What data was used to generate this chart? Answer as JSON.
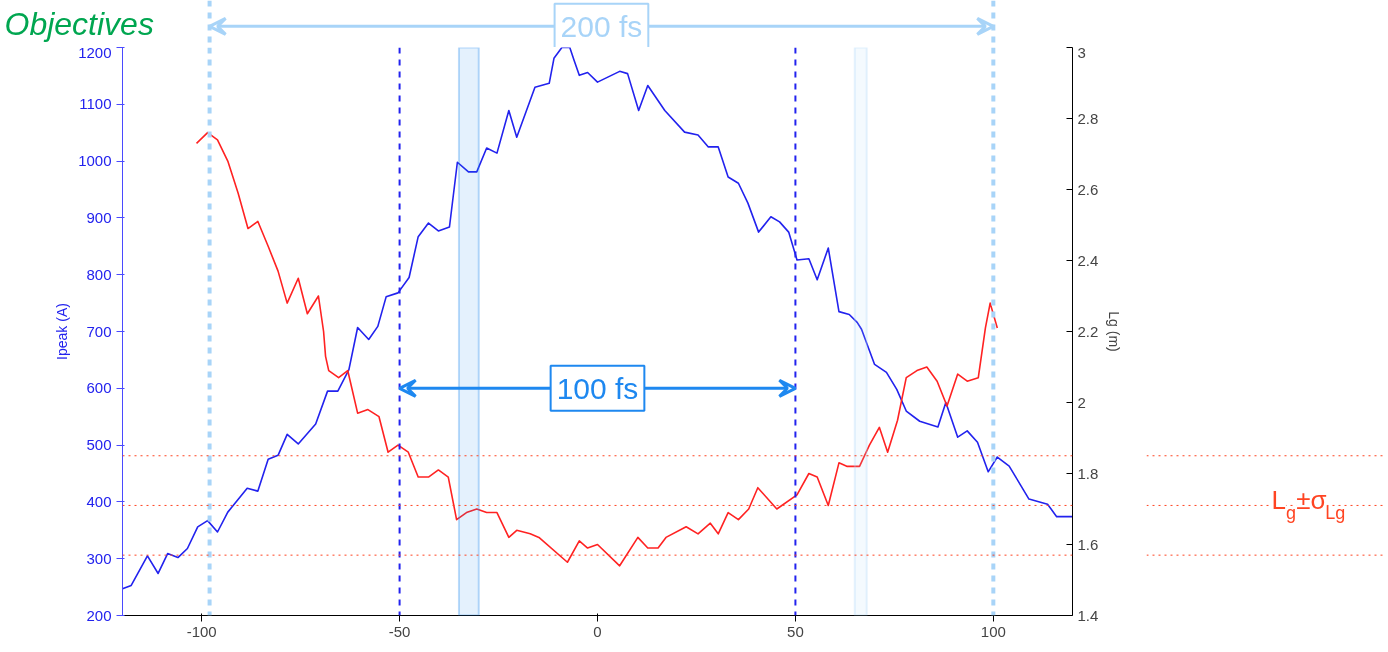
{
  "chart_data": {
    "type": "line",
    "title": "Objectives",
    "xlabel": null,
    "ylabel": "Ipeak (A)",
    "y2label": "Lg (m)",
    "xlim": [
      -120,
      120
    ],
    "xticks": [
      -100,
      -50,
      0,
      50,
      100
    ],
    "ylim": [
      200,
      1200
    ],
    "yticks": [
      200,
      300,
      400,
      500,
      600,
      700,
      800,
      900,
      1000,
      1100,
      1200
    ],
    "y2lim": [
      1.4,
      3
    ],
    "y2ticks": [
      1.4,
      1.6,
      1.8,
      2,
      2.2,
      2.4,
      2.6,
      2.8,
      3
    ],
    "grid": false,
    "marker": "none",
    "line_style": "solid",
    "series": [
      {
        "color": "#2222ee",
        "x": [
          -120,
          -117.8,
          -113.7,
          -111,
          -108.6,
          -106,
          -103.6,
          -101,
          -98.5,
          -96,
          -93.4,
          -88.5,
          -85.8,
          -83.2,
          -80.7,
          -78.4,
          -75.6,
          -71.2,
          -68.2,
          -65.6,
          -62.8,
          -60.6,
          -57.8,
          -55.5,
          -53.4,
          -50.4,
          -47.6,
          -45.3,
          -42.7,
          -40.2,
          -37.4,
          -35.4,
          -32.6,
          -30.5,
          -28,
          -25.4,
          -22.4,
          -20.4,
          -15.8,
          -12.2,
          -11,
          -9,
          -7,
          -5.9,
          -4.6,
          -2.5,
          0,
          5.6,
          7.6,
          10.4,
          12.7,
          17,
          22,
          25.4,
          28,
          30.5,
          33,
          35.6,
          38,
          40.7,
          43.8,
          46,
          48.3,
          50.4,
          53.4,
          55.5,
          58.3,
          61,
          63.6,
          65.6,
          66.7,
          70,
          73,
          75.6,
          78,
          81.4,
          86,
          88,
          91,
          93.4,
          96,
          98.7,
          101,
          104,
          109,
          113.7,
          116,
          120
        ],
        "values": [
          247,
          253,
          305,
          274,
          309,
          302,
          318,
          356,
          367,
          347,
          382,
          424,
          419,
          475,
          482,
          519,
          502,
          537,
          595,
          595,
          633,
          707,
          686,
          709,
          761,
          768,
          795,
          867,
          891,
          877,
          884,
          998,
          981,
          981,
          1023,
          1014,
          1089,
          1042,
          1130,
          1137,
          1181,
          1200,
          1200,
          1177,
          1151,
          1156,
          1139,
          1158,
          1154,
          1089,
          1133,
          1089,
          1051,
          1046,
          1025,
          1025,
          972,
          961,
          926,
          875,
          902,
          893,
          875,
          826,
          828,
          791,
          847,
          735,
          730,
          716,
          704,
          642,
          628,
          598,
          560,
          542,
          532,
          575,
          514,
          525,
          505,
          453,
          479,
          463,
          405,
          396,
          374,
          374
        ]
      },
      {
        "color": "#ff2222",
        "axis": "y2",
        "x": [
          -101.3,
          -98.5,
          -96,
          -93.4,
          -90.8,
          -88.3,
          -85.8,
          -83.2,
          -80.7,
          -78.4,
          -75.6,
          -73.3,
          -70.5,
          -69.2,
          -68.7,
          -67.9,
          -65.4,
          -63.1,
          -60.6,
          -58,
          -55.2,
          -52.9,
          -50.4,
          -47.8,
          -45.3,
          -42.7,
          -40.2,
          -37.7,
          -35.6,
          -33.1,
          -30.5,
          -28,
          -25.4,
          -22.4,
          -20.4,
          -17,
          -14.8,
          -7.6,
          -4.6,
          -2.5,
          0,
          5.6,
          10.2,
          12.7,
          15.3,
          17.3,
          22.4,
          25.4,
          28.5,
          30.5,
          33,
          35.6,
          38.2,
          40.5,
          45.3,
          50.4,
          53.4,
          55.5,
          58.3,
          61,
          63.1,
          66.2,
          68.7,
          71.2,
          73.3,
          75.8,
          78,
          80.7,
          83.2,
          85.8,
          88.3,
          91,
          93.4,
          96.2,
          98,
          99.2,
          101
        ],
        "values": [
          2.73,
          2.76,
          2.74,
          2.68,
          2.59,
          2.49,
          2.51,
          2.44,
          2.37,
          2.28,
          2.35,
          2.25,
          2.3,
          2.2,
          2.13,
          2.09,
          2.07,
          2.09,
          1.97,
          1.98,
          1.96,
          1.86,
          1.88,
          1.86,
          1.79,
          1.79,
          1.81,
          1.79,
          1.67,
          1.69,
          1.7,
          1.69,
          1.69,
          1.62,
          1.64,
          1.63,
          1.62,
          1.55,
          1.61,
          1.59,
          1.6,
          1.54,
          1.62,
          1.59,
          1.59,
          1.62,
          1.65,
          1.63,
          1.66,
          1.63,
          1.69,
          1.67,
          1.7,
          1.76,
          1.7,
          1.74,
          1.8,
          1.79,
          1.71,
          1.83,
          1.82,
          1.82,
          1.88,
          1.93,
          1.86,
          1.95,
          2.07,
          2.09,
          2.1,
          2.06,
          1.99,
          2.08,
          2.06,
          2.07,
          2.21,
          2.28,
          2.21
        ]
      }
    ],
    "ref_lines": [
      {
        "axis": "x",
        "value": -50,
        "color": "#2222ee",
        "line_style": "dashed"
      },
      {
        "axis": "x",
        "value": 50,
        "color": "#2222ee",
        "line_style": "dashed"
      },
      {
        "axis": "x",
        "value": -98,
        "color": "#a8d4f8",
        "line_style": "dashed"
      },
      {
        "axis": "x",
        "value": 100,
        "color": "#a8d4f8",
        "line_style": "dashed"
      },
      {
        "axis": "y2",
        "value": 1.85,
        "color": "#ff4422",
        "line_style": "dotted"
      },
      {
        "axis": "y2",
        "value": 1.71,
        "color": "#ff4422",
        "line_style": "dotted",
        "label": "L$_{g}$±σ$_{Lg}$"
      },
      {
        "axis": "y2",
        "value": 1.57,
        "color": "#ff4422",
        "line_style": "dotted"
      }
    ],
    "bands": [
      {
        "axis": "x",
        "from": -35,
        "to": -30,
        "color": "#1e88f0"
      },
      {
        "axis": "x",
        "from": 65,
        "to": 68,
        "color": "#a8d4f8"
      }
    ],
    "annotations": [
      {
        "text": "100 fs",
        "x": 50,
        "y": 600
      },
      "200 fs"
    ]
  }
}
